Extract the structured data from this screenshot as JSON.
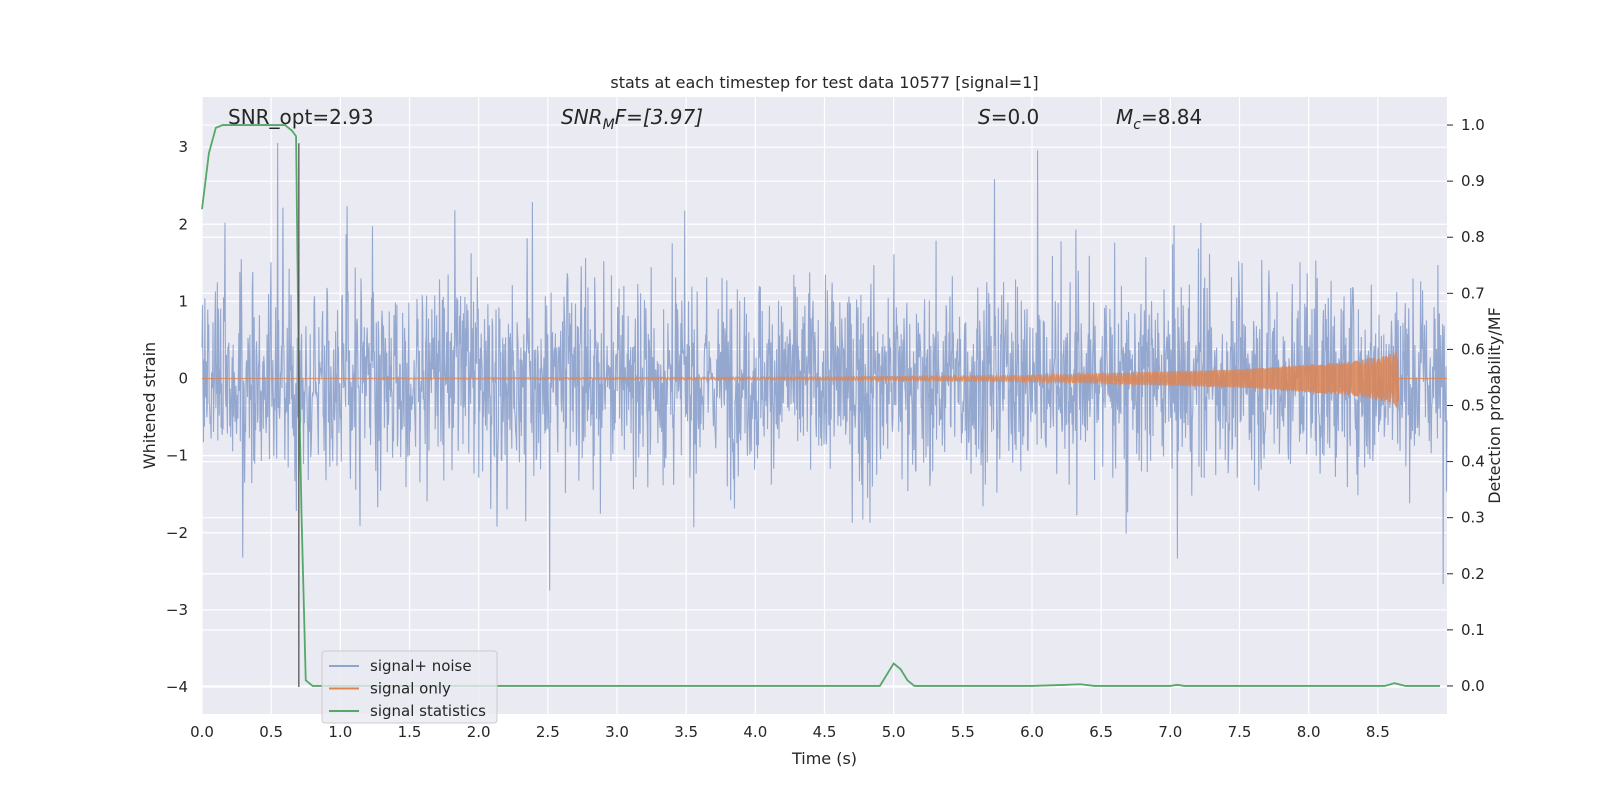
{
  "chart_data": {
    "type": "line",
    "title": "stats at each timestep for test data 10577 [signal=1]",
    "xlabel": "Time (s)",
    "ylabel": "Whitened strain",
    "y2label": "Detection probability/MF",
    "xlim": [
      0.0,
      9.0
    ],
    "ylim": [
      -4.35,
      3.65
    ],
    "y2lim": [
      -0.05,
      1.05
    ],
    "xticks": [
      "0.0",
      "0.5",
      "1.0",
      "1.5",
      "2.0",
      "2.5",
      "3.0",
      "3.5",
      "4.0",
      "4.5",
      "5.0",
      "5.5",
      "6.0",
      "6.5",
      "7.0",
      "7.5",
      "8.0",
      "8.5"
    ],
    "yticks": [
      "3",
      "2",
      "1",
      "0",
      "−1",
      "−2",
      "−3",
      "−4"
    ],
    "y2ticks": [
      "1.0",
      "0.9",
      "0.8",
      "0.7",
      "0.6",
      "0.5",
      "0.4",
      "0.3",
      "0.2",
      "0.1",
      "0.0"
    ],
    "grid": true,
    "legend_position": "lower-left",
    "annotations": [
      {
        "label": "SNR_opt=2.93"
      },
      {
        "label": "SNR",
        "sub": "M",
        "rest": "F=[3.97]"
      },
      {
        "label": "S",
        "rest": "=0.0"
      },
      {
        "label": "M",
        "sub": "c",
        "rest": "=8.84"
      }
    ],
    "vline_x": 0.7,
    "series": [
      {
        "name": "signal+ noise",
        "color": "#8fa3cc",
        "envelope_typical": [
          -1.6,
          1.7
        ],
        "envelope_peak": [
          -4.0,
          3.3
        ]
      },
      {
        "name": "signal only",
        "color": "#dd8452",
        "amplitude_points": [
          [
            0.0,
            0.0
          ],
          [
            4.5,
            0.02
          ],
          [
            6.0,
            0.04
          ],
          [
            7.5,
            0.12
          ],
          [
            8.3,
            0.22
          ],
          [
            8.6,
            0.32
          ],
          [
            8.65,
            0.4
          ],
          [
            8.66,
            0.0
          ]
        ]
      },
      {
        "name": "signal statistics",
        "color": "#55a868",
        "axis": "right",
        "x": [
          0.0,
          0.05,
          0.1,
          0.15,
          0.2,
          0.3,
          0.4,
          0.5,
          0.6,
          0.65,
          0.68,
          0.7,
          0.72,
          0.75,
          0.8,
          0.85,
          1.0,
          2.0,
          3.0,
          4.0,
          4.9,
          4.95,
          5.0,
          5.05,
          5.1,
          5.15,
          5.2,
          6.0,
          6.25,
          6.35,
          6.45,
          7.0,
          7.05,
          7.1,
          8.0,
          8.55,
          8.62,
          8.7,
          8.95
        ],
        "y": [
          0.85,
          0.95,
          0.995,
          1.0,
          1.0,
          1.0,
          1.0,
          1.0,
          1.0,
          0.99,
          0.98,
          0.55,
          0.3,
          0.01,
          0.0,
          0.0,
          0.0,
          0.0,
          0.0,
          0.0,
          0.0,
          0.02,
          0.04,
          0.03,
          0.01,
          0.0,
          0.0,
          0.0,
          0.002,
          0.003,
          0.0,
          0.0,
          0.002,
          0.0,
          0.0,
          0.0,
          0.005,
          0.0,
          0.0
        ]
      }
    ]
  }
}
